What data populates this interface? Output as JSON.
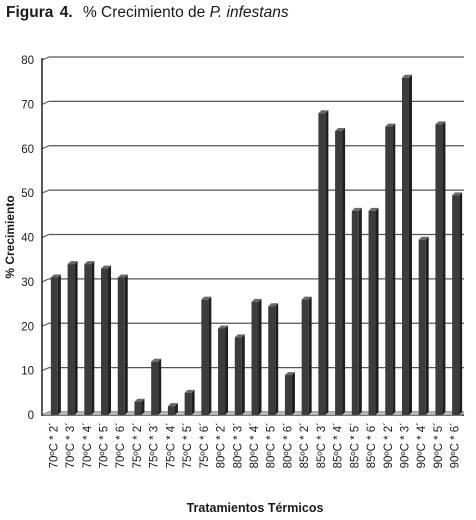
{
  "caption": {
    "label": "Figura",
    "number": "4",
    "text_prefix": "% Crecimiento de ",
    "text_italic": "P. infestans"
  },
  "chart_data": {
    "type": "bar",
    "title": "",
    "xlabel": "Tratamientos Térmicos",
    "ylabel": "% Crecimiento",
    "ylim": [
      0,
      80
    ],
    "yticks": [
      0,
      10,
      20,
      30,
      40,
      50,
      60,
      70,
      80
    ],
    "grid": true,
    "style": "3d-column",
    "colors": {
      "bar": "#3c3c3c",
      "bar_side": "#1e1e1e",
      "bar_top": "#6a6a6a",
      "grid": "#555555",
      "axis": "#222222"
    },
    "categories": [
      "70ºC * 2´",
      "70ºC * 3´",
      "70ºC * 4´",
      "70ºC * 5´",
      "70ºC * 6´",
      "75ºC * 2´",
      "75ºC * 3´",
      "75ºC * 4´",
      "75ºC * 5´",
      "75ºC * 6´",
      "80ºC * 2´",
      "80ºC * 3´",
      "80ºC * 4´",
      "80ºC * 5´",
      "80ºC * 6´",
      "85ºC * 2´",
      "85ºC * 3´",
      "85ºC * 4´",
      "85ºC * 5´",
      "85ºC * 6´",
      "90ºC * 2´",
      "90ºC * 3´",
      "90ºC * 4´",
      "90ºC * 5´",
      "90ºC * 6´"
    ],
    "values": [
      31,
      34,
      34,
      33,
      31,
      3,
      12,
      2,
      5,
      26,
      19.5,
      17.5,
      25.5,
      24.5,
      9,
      26,
      68,
      64,
      46,
      46,
      65,
      76,
      39.5,
      65.5,
      49.5
    ]
  }
}
